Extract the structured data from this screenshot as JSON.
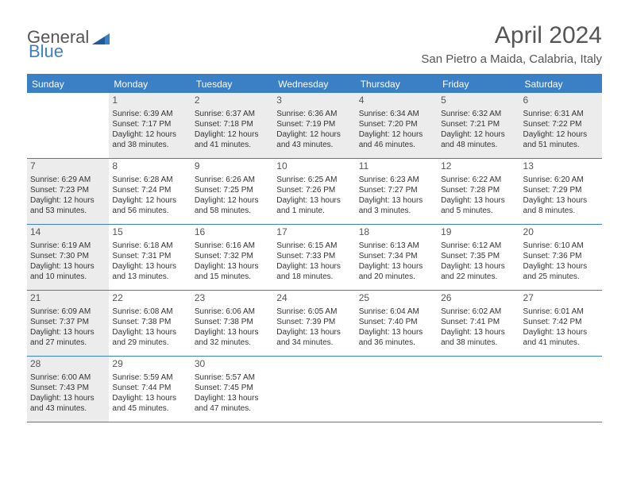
{
  "logo": {
    "word1": "General",
    "word2": "Blue"
  },
  "header": {
    "month_title": "April 2024",
    "location": "San Pietro a Maida, Calabria, Italy"
  },
  "weekdays": [
    "Sunday",
    "Monday",
    "Tuesday",
    "Wednesday",
    "Thursday",
    "Friday",
    "Saturday"
  ],
  "colors": {
    "accent": "#3b7fc4",
    "shaded": "#ececec",
    "text": "#333333",
    "heading": "#555555",
    "white": "#ffffff"
  },
  "weeks": [
    [
      {
        "empty": true
      },
      {
        "num": "1",
        "shaded": true,
        "sunrise": "Sunrise: 6:39 AM",
        "sunset": "Sunset: 7:17 PM",
        "day1": "Daylight: 12 hours",
        "day2": "and 38 minutes."
      },
      {
        "num": "2",
        "shaded": true,
        "sunrise": "Sunrise: 6:37 AM",
        "sunset": "Sunset: 7:18 PM",
        "day1": "Daylight: 12 hours",
        "day2": "and 41 minutes."
      },
      {
        "num": "3",
        "shaded": true,
        "sunrise": "Sunrise: 6:36 AM",
        "sunset": "Sunset: 7:19 PM",
        "day1": "Daylight: 12 hours",
        "day2": "and 43 minutes."
      },
      {
        "num": "4",
        "shaded": true,
        "sunrise": "Sunrise: 6:34 AM",
        "sunset": "Sunset: 7:20 PM",
        "day1": "Daylight: 12 hours",
        "day2": "and 46 minutes."
      },
      {
        "num": "5",
        "shaded": true,
        "sunrise": "Sunrise: 6:32 AM",
        "sunset": "Sunset: 7:21 PM",
        "day1": "Daylight: 12 hours",
        "day2": "and 48 minutes."
      },
      {
        "num": "6",
        "shaded": true,
        "sunrise": "Sunrise: 6:31 AM",
        "sunset": "Sunset: 7:22 PM",
        "day1": "Daylight: 12 hours",
        "day2": "and 51 minutes."
      }
    ],
    [
      {
        "num": "7",
        "shaded": true,
        "sunrise": "Sunrise: 6:29 AM",
        "sunset": "Sunset: 7:23 PM",
        "day1": "Daylight: 12 hours",
        "day2": "and 53 minutes."
      },
      {
        "num": "8",
        "shaded": false,
        "sunrise": "Sunrise: 6:28 AM",
        "sunset": "Sunset: 7:24 PM",
        "day1": "Daylight: 12 hours",
        "day2": "and 56 minutes."
      },
      {
        "num": "9",
        "shaded": false,
        "sunrise": "Sunrise: 6:26 AM",
        "sunset": "Sunset: 7:25 PM",
        "day1": "Daylight: 12 hours",
        "day2": "and 58 minutes."
      },
      {
        "num": "10",
        "shaded": false,
        "sunrise": "Sunrise: 6:25 AM",
        "sunset": "Sunset: 7:26 PM",
        "day1": "Daylight: 13 hours",
        "day2": "and 1 minute."
      },
      {
        "num": "11",
        "shaded": false,
        "sunrise": "Sunrise: 6:23 AM",
        "sunset": "Sunset: 7:27 PM",
        "day1": "Daylight: 13 hours",
        "day2": "and 3 minutes."
      },
      {
        "num": "12",
        "shaded": false,
        "sunrise": "Sunrise: 6:22 AM",
        "sunset": "Sunset: 7:28 PM",
        "day1": "Daylight: 13 hours",
        "day2": "and 5 minutes."
      },
      {
        "num": "13",
        "shaded": false,
        "sunrise": "Sunrise: 6:20 AM",
        "sunset": "Sunset: 7:29 PM",
        "day1": "Daylight: 13 hours",
        "day2": "and 8 minutes."
      }
    ],
    [
      {
        "num": "14",
        "shaded": true,
        "sunrise": "Sunrise: 6:19 AM",
        "sunset": "Sunset: 7:30 PM",
        "day1": "Daylight: 13 hours",
        "day2": "and 10 minutes."
      },
      {
        "num": "15",
        "shaded": false,
        "sunrise": "Sunrise: 6:18 AM",
        "sunset": "Sunset: 7:31 PM",
        "day1": "Daylight: 13 hours",
        "day2": "and 13 minutes."
      },
      {
        "num": "16",
        "shaded": false,
        "sunrise": "Sunrise: 6:16 AM",
        "sunset": "Sunset: 7:32 PM",
        "day1": "Daylight: 13 hours",
        "day2": "and 15 minutes."
      },
      {
        "num": "17",
        "shaded": false,
        "sunrise": "Sunrise: 6:15 AM",
        "sunset": "Sunset: 7:33 PM",
        "day1": "Daylight: 13 hours",
        "day2": "and 18 minutes."
      },
      {
        "num": "18",
        "shaded": false,
        "sunrise": "Sunrise: 6:13 AM",
        "sunset": "Sunset: 7:34 PM",
        "day1": "Daylight: 13 hours",
        "day2": "and 20 minutes."
      },
      {
        "num": "19",
        "shaded": false,
        "sunrise": "Sunrise: 6:12 AM",
        "sunset": "Sunset: 7:35 PM",
        "day1": "Daylight: 13 hours",
        "day2": "and 22 minutes."
      },
      {
        "num": "20",
        "shaded": false,
        "sunrise": "Sunrise: 6:10 AM",
        "sunset": "Sunset: 7:36 PM",
        "day1": "Daylight: 13 hours",
        "day2": "and 25 minutes."
      }
    ],
    [
      {
        "num": "21",
        "shaded": true,
        "sunrise": "Sunrise: 6:09 AM",
        "sunset": "Sunset: 7:37 PM",
        "day1": "Daylight: 13 hours",
        "day2": "and 27 minutes."
      },
      {
        "num": "22",
        "shaded": false,
        "sunrise": "Sunrise: 6:08 AM",
        "sunset": "Sunset: 7:38 PM",
        "day1": "Daylight: 13 hours",
        "day2": "and 29 minutes."
      },
      {
        "num": "23",
        "shaded": false,
        "sunrise": "Sunrise: 6:06 AM",
        "sunset": "Sunset: 7:38 PM",
        "day1": "Daylight: 13 hours",
        "day2": "and 32 minutes."
      },
      {
        "num": "24",
        "shaded": false,
        "sunrise": "Sunrise: 6:05 AM",
        "sunset": "Sunset: 7:39 PM",
        "day1": "Daylight: 13 hours",
        "day2": "and 34 minutes."
      },
      {
        "num": "25",
        "shaded": false,
        "sunrise": "Sunrise: 6:04 AM",
        "sunset": "Sunset: 7:40 PM",
        "day1": "Daylight: 13 hours",
        "day2": "and 36 minutes."
      },
      {
        "num": "26",
        "shaded": false,
        "sunrise": "Sunrise: 6:02 AM",
        "sunset": "Sunset: 7:41 PM",
        "day1": "Daylight: 13 hours",
        "day2": "and 38 minutes."
      },
      {
        "num": "27",
        "shaded": false,
        "sunrise": "Sunrise: 6:01 AM",
        "sunset": "Sunset: 7:42 PM",
        "day1": "Daylight: 13 hours",
        "day2": "and 41 minutes."
      }
    ],
    [
      {
        "num": "28",
        "shaded": true,
        "sunrise": "Sunrise: 6:00 AM",
        "sunset": "Sunset: 7:43 PM",
        "day1": "Daylight: 13 hours",
        "day2": "and 43 minutes."
      },
      {
        "num": "29",
        "shaded": false,
        "sunrise": "Sunrise: 5:59 AM",
        "sunset": "Sunset: 7:44 PM",
        "day1": "Daylight: 13 hours",
        "day2": "and 45 minutes."
      },
      {
        "num": "30",
        "shaded": false,
        "sunrise": "Sunrise: 5:57 AM",
        "sunset": "Sunset: 7:45 PM",
        "day1": "Daylight: 13 hours",
        "day2": "and 47 minutes."
      },
      {
        "empty": true
      },
      {
        "empty": true
      },
      {
        "empty": true
      },
      {
        "empty": true
      }
    ]
  ]
}
